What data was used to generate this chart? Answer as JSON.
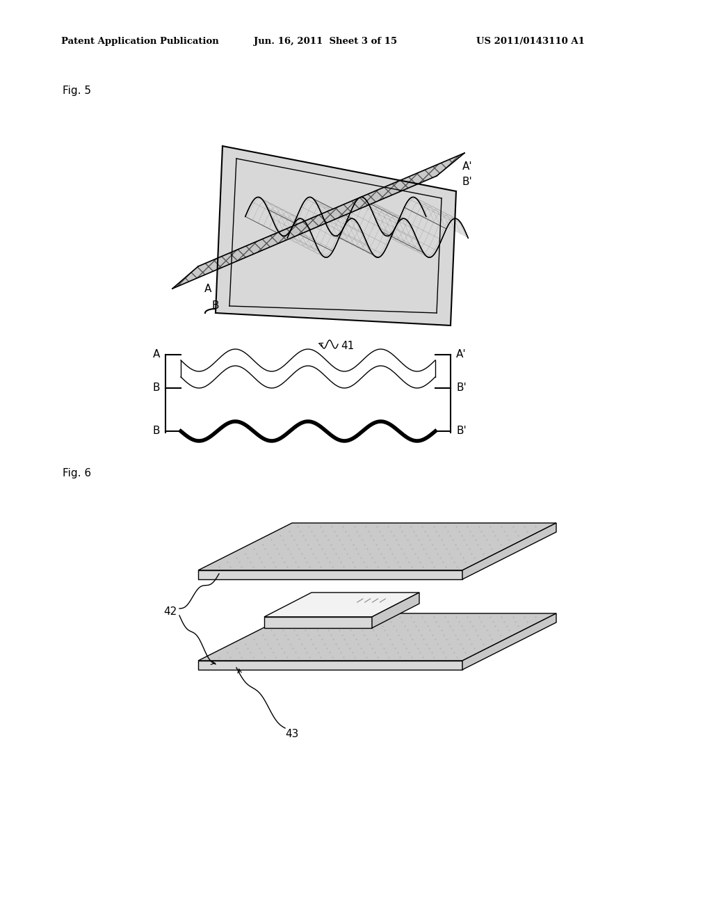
{
  "background_color": "#ffffff",
  "header_text": "Patent Application Publication",
  "header_date": "Jun. 16, 2011  Sheet 3 of 15",
  "header_patent": "US 2011/0143110 A1",
  "fig5_label": "Fig. 5",
  "fig6_label": "Fig. 6",
  "label_41": "41",
  "label_42": "42",
  "label_43": "43",
  "line_color": "#000000",
  "gray_fill": "#d4d4d4",
  "gray_dark": "#a0a0a0",
  "gray_light": "#e8e8e8",
  "strip_gray": "#b0b0b0",
  "white": "#ffffff"
}
